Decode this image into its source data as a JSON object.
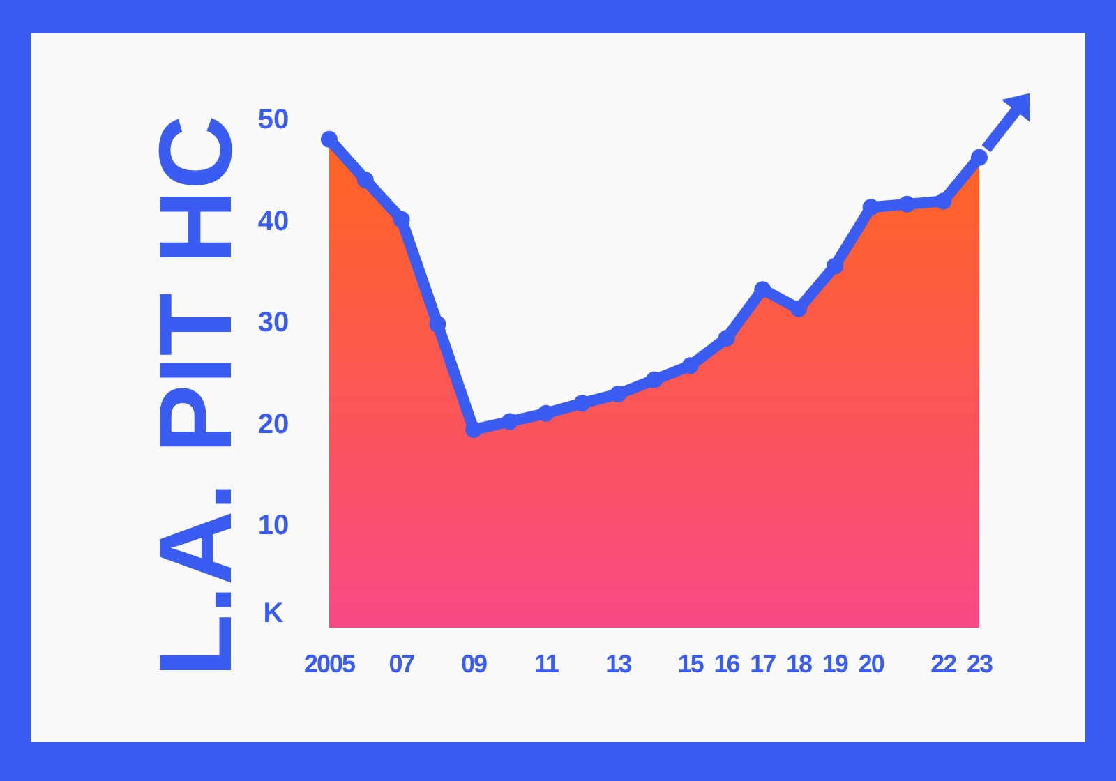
{
  "chart_data": {
    "type": "area",
    "title": "L.A. PIT HC",
    "x": [
      2005,
      2006,
      2007,
      2008,
      2009,
      2010,
      2011,
      2012,
      2013,
      2014,
      2015,
      2016,
      2017,
      2018,
      2019,
      2020,
      2021,
      2022,
      2023
    ],
    "series": [
      {
        "color": "#3b5cf0",
        "values": [
          48.1,
          44.1,
          40.2,
          29.9,
          19.5,
          20.3,
          21.1,
          22.1,
          23.0,
          24.4,
          25.8,
          28.5,
          33.3,
          31.4,
          35.6,
          41.4,
          41.7,
          42.0,
          46.3
        ]
      }
    ],
    "xlim": [
      2005,
      2023
    ],
    "xticks": [
      {
        "value": 2005,
        "label": "2005"
      },
      {
        "value": 2007,
        "label": "07"
      },
      {
        "value": 2009,
        "label": "09"
      },
      {
        "value": 2011,
        "label": "11"
      },
      {
        "value": 2013,
        "label": "13"
      },
      {
        "value": 2015,
        "label": "15"
      },
      {
        "value": 2016,
        "label": "16"
      },
      {
        "value": 2017,
        "label": "17"
      },
      {
        "value": 2018,
        "label": "18"
      },
      {
        "value": 2019,
        "label": "19"
      },
      {
        "value": 2020,
        "label": "20"
      },
      {
        "value": 2022,
        "label": "22"
      },
      {
        "value": 2023,
        "label": "23"
      }
    ],
    "ylim": [
      0,
      50
    ],
    "yticks": [
      {
        "value": 0,
        "label": "K"
      },
      10,
      20,
      30,
      40,
      50
    ],
    "marker": "circle"
  }
}
